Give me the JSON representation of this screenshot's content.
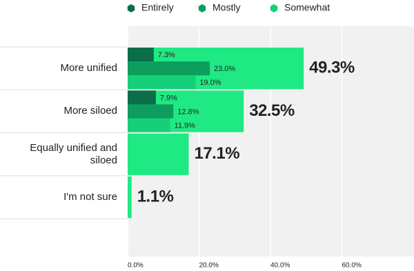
{
  "chart_data": {
    "type": "bar",
    "categories": [
      "More unified",
      "More siloed",
      "Equally unified and siloed",
      "I'm not sure"
    ],
    "values": [
      49.3,
      32.5,
      17.1,
      1.1
    ],
    "value_labels": [
      "49.3%",
      "32.5%",
      "17.1%",
      "1.1%"
    ],
    "color": "#1fe983",
    "series": [
      {
        "name": "Entirely",
        "color": "#0b6e48",
        "values": [
          7.3,
          7.9,
          null,
          null
        ],
        "value_labels": [
          "7.3%",
          "7.9%",
          null,
          null
        ]
      },
      {
        "name": "Mostly",
        "color": "#0d9e5e",
        "values": [
          23.0,
          12.8,
          null,
          null
        ],
        "value_labels": [
          "23.0%",
          "12.8%",
          null,
          null
        ]
      },
      {
        "name": "Somewhat",
        "color": "#17cf79",
        "values": [
          19.0,
          11.9,
          null,
          null
        ],
        "value_labels": [
          "19.0%",
          "11.9%",
          null,
          null
        ]
      }
    ],
    "xlim": [
      0,
      80
    ],
    "xticks": [
      {
        "value": 0,
        "label": "0.0%"
      },
      {
        "value": 20,
        "label": "20.0%"
      },
      {
        "value": 40,
        "label": "40.0%"
      },
      {
        "value": 60,
        "label": "60.0%"
      }
    ],
    "grid": true
  }
}
